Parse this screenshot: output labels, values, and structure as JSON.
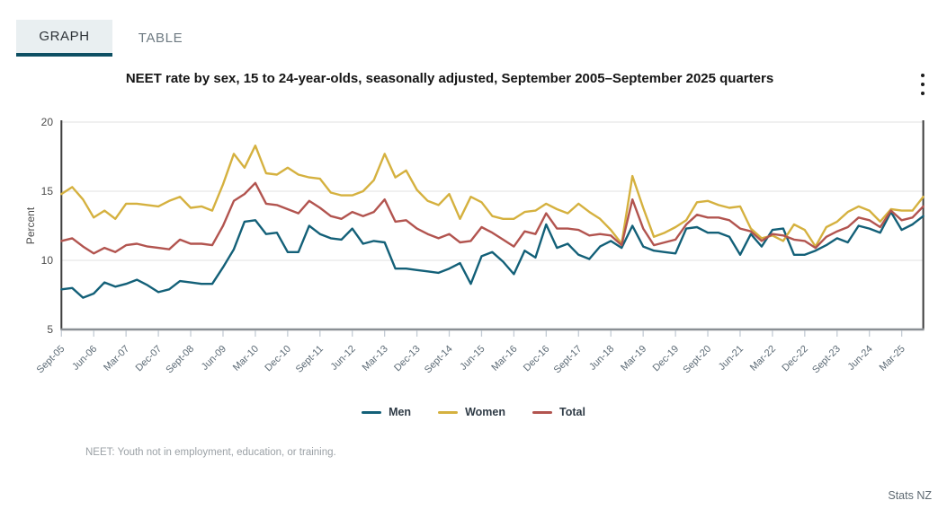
{
  "tabs": {
    "graph": "GRAPH",
    "table": "TABLE"
  },
  "title": "NEET rate by sex, 15 to 24-year-olds, seasonally adjusted, September 2005–September 2025 quarters",
  "footnote": "NEET: Youth not in employment, education, or training.",
  "attribution": "Stats NZ",
  "colors": {
    "men": "#136078",
    "women": "#d5b13f",
    "total": "#b2544f",
    "tab_underline": "#0d4f63",
    "axis_dark": "#3d3d3d",
    "axis_bottom": "#8a8f94",
    "grid": "#ebebeb",
    "tick": "#c3cbd4",
    "tick_text": "#5d6b76"
  },
  "chart_data": {
    "type": "line",
    "title": "NEET rate by sex, 15 to 24-year-olds, seasonally adjusted, September 2005–September 2025 quarters",
    "ylabel": "Percent",
    "ylim": [
      5,
      20
    ],
    "yticks": [
      5,
      10,
      15,
      20
    ],
    "grid": "horizontal",
    "legend_position": "bottom",
    "label_every": 3,
    "x_labels": [
      "Sept-05",
      "Jun-06",
      "Mar-07",
      "Dec-07",
      "Sept-08",
      "Jun-09",
      "Mar-10",
      "Dec-10",
      "Sept-11",
      "Jun-12",
      "Mar-13",
      "Dec-13",
      "Sept-14",
      "Jun-15",
      "Mar-16",
      "Dec-16",
      "Sept-17",
      "Jun-18",
      "Mar-19",
      "Dec-19",
      "Sept-20",
      "Jun-21",
      "Mar-22",
      "Dec-22",
      "Sept-23",
      "Jun-24",
      "Mar-25"
    ],
    "series": [
      {
        "name": "Men",
        "color": "#136078",
        "values": [
          7.9,
          8.0,
          7.3,
          7.6,
          8.4,
          8.1,
          8.3,
          8.6,
          8.2,
          7.7,
          7.9,
          8.5,
          8.4,
          8.3,
          8.3,
          9.5,
          10.8,
          12.8,
          12.9,
          11.9,
          12.0,
          10.6,
          10.6,
          12.5,
          11.9,
          11.6,
          11.5,
          12.3,
          11.2,
          11.4,
          11.3,
          9.4,
          9.4,
          9.3,
          9.2,
          9.1,
          9.4,
          9.8,
          8.3,
          10.3,
          10.6,
          9.9,
          9.0,
          10.7,
          10.2,
          12.6,
          10.9,
          11.2,
          10.4,
          10.1,
          11.0,
          11.4,
          10.9,
          12.5,
          11.0,
          10.7,
          10.6,
          10.5,
          12.3,
          12.4,
          12.0,
          12.0,
          11.7,
          10.4,
          11.9,
          11.0,
          12.2,
          12.3,
          10.4,
          10.4,
          10.7,
          11.1,
          11.6,
          11.3,
          12.5,
          12.3,
          12.0,
          13.5,
          12.2,
          12.6,
          13.2
        ]
      },
      {
        "name": "Women",
        "color": "#d5b13f",
        "values": [
          14.8,
          15.3,
          14.4,
          13.1,
          13.6,
          13.0,
          14.1,
          14.1,
          14.0,
          13.9,
          14.3,
          14.6,
          13.8,
          13.9,
          13.6,
          15.5,
          17.7,
          16.7,
          18.3,
          16.3,
          16.2,
          16.7,
          16.2,
          16.0,
          15.9,
          14.9,
          14.7,
          14.7,
          15.0,
          15.8,
          17.7,
          16.0,
          16.5,
          15.1,
          14.3,
          14.0,
          14.8,
          13.0,
          14.6,
          14.2,
          13.2,
          13.0,
          13.0,
          13.5,
          13.6,
          14.1,
          13.7,
          13.4,
          14.1,
          13.5,
          13.0,
          12.2,
          11.2,
          16.1,
          13.8,
          11.7,
          12.0,
          12.4,
          12.9,
          14.2,
          14.3,
          14.0,
          13.8,
          13.9,
          12.3,
          11.6,
          11.8,
          11.4,
          12.6,
          12.2,
          11.0,
          12.4,
          12.8,
          13.5,
          13.9,
          13.6,
          12.8,
          13.7,
          13.6,
          13.6,
          14.6
        ]
      },
      {
        "name": "Total",
        "color": "#b2544f",
        "values": [
          11.4,
          11.6,
          11.0,
          10.5,
          10.9,
          10.6,
          11.1,
          11.2,
          11.0,
          10.9,
          10.8,
          11.5,
          11.2,
          11.2,
          11.1,
          12.5,
          14.3,
          14.8,
          15.6,
          14.1,
          14.0,
          13.7,
          13.4,
          14.3,
          13.8,
          13.2,
          13.0,
          13.5,
          13.2,
          13.5,
          14.4,
          12.8,
          12.9,
          12.3,
          11.9,
          11.6,
          11.9,
          11.3,
          11.4,
          12.4,
          12.0,
          11.5,
          11.0,
          12.1,
          11.9,
          13.4,
          12.3,
          12.3,
          12.2,
          11.8,
          11.9,
          11.8,
          11.1,
          14.4,
          12.3,
          11.1,
          11.3,
          11.5,
          12.6,
          13.3,
          13.1,
          13.1,
          12.9,
          12.3,
          12.1,
          11.4,
          11.9,
          11.8,
          11.5,
          11.4,
          10.9,
          11.7,
          12.1,
          12.4,
          13.1,
          12.9,
          12.4,
          13.6,
          12.9,
          13.1,
          13.9
        ]
      }
    ]
  }
}
